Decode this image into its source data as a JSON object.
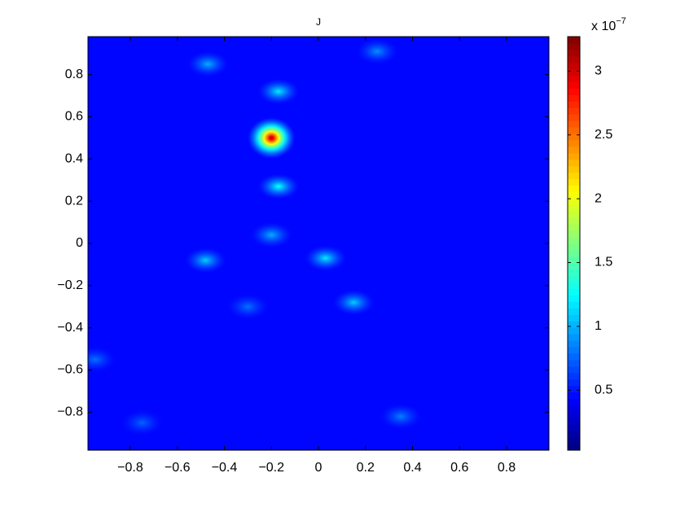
{
  "chart_data": {
    "type": "heatmap",
    "title": "J",
    "xlim": [
      -0.98,
      0.98
    ],
    "ylim": [
      -0.98,
      0.98
    ],
    "xticks": [
      {
        "value": -0.8,
        "label": "−0.8"
      },
      {
        "value": -0.6,
        "label": "−0.6"
      },
      {
        "value": -0.4,
        "label": "−0.4"
      },
      {
        "value": -0.2,
        "label": "−0.2"
      },
      0,
      0.2,
      0.4,
      0.6,
      0.8
    ],
    "yticks": [
      {
        "value": -0.8,
        "label": "−0.8"
      },
      {
        "value": -0.6,
        "label": "−0.6"
      },
      {
        "value": -0.4,
        "label": "−0.4"
      },
      {
        "value": -0.2,
        "label": "−0.2"
      },
      0,
      0.2,
      0.4,
      0.6,
      0.8
    ],
    "colormap": "jet",
    "clim": [
      0.03,
      3.27
    ],
    "colorbar_ticks": [
      0.5,
      1,
      1.5,
      2,
      2.5,
      3
    ],
    "colorbar_multiplier": "x 10",
    "colorbar_exponent": "−7",
    "background": 0.45,
    "spots": [
      {
        "x": -0.2,
        "y": 0.5,
        "value": 3.25
      },
      {
        "x": -0.17,
        "y": 0.72,
        "value": 1.2
      },
      {
        "x": -0.17,
        "y": 0.27,
        "value": 1.3
      },
      {
        "x": -0.2,
        "y": 0.04,
        "value": 1.0
      },
      {
        "x": 0.03,
        "y": -0.07,
        "value": 1.2
      },
      {
        "x": -0.48,
        "y": -0.08,
        "value": 1.1
      },
      {
        "x": 0.15,
        "y": -0.28,
        "value": 1.1
      },
      {
        "x": -0.47,
        "y": 0.85,
        "value": 1.0
      },
      {
        "x": 0.25,
        "y": 0.91,
        "value": 0.9
      },
      {
        "x": -0.3,
        "y": -0.3,
        "value": 0.8
      },
      {
        "x": 0.35,
        "y": -0.82,
        "value": 0.85
      },
      {
        "x": -0.75,
        "y": -0.85,
        "value": 0.75
      },
      {
        "x": -0.95,
        "y": -0.55,
        "value": 0.8
      }
    ]
  }
}
